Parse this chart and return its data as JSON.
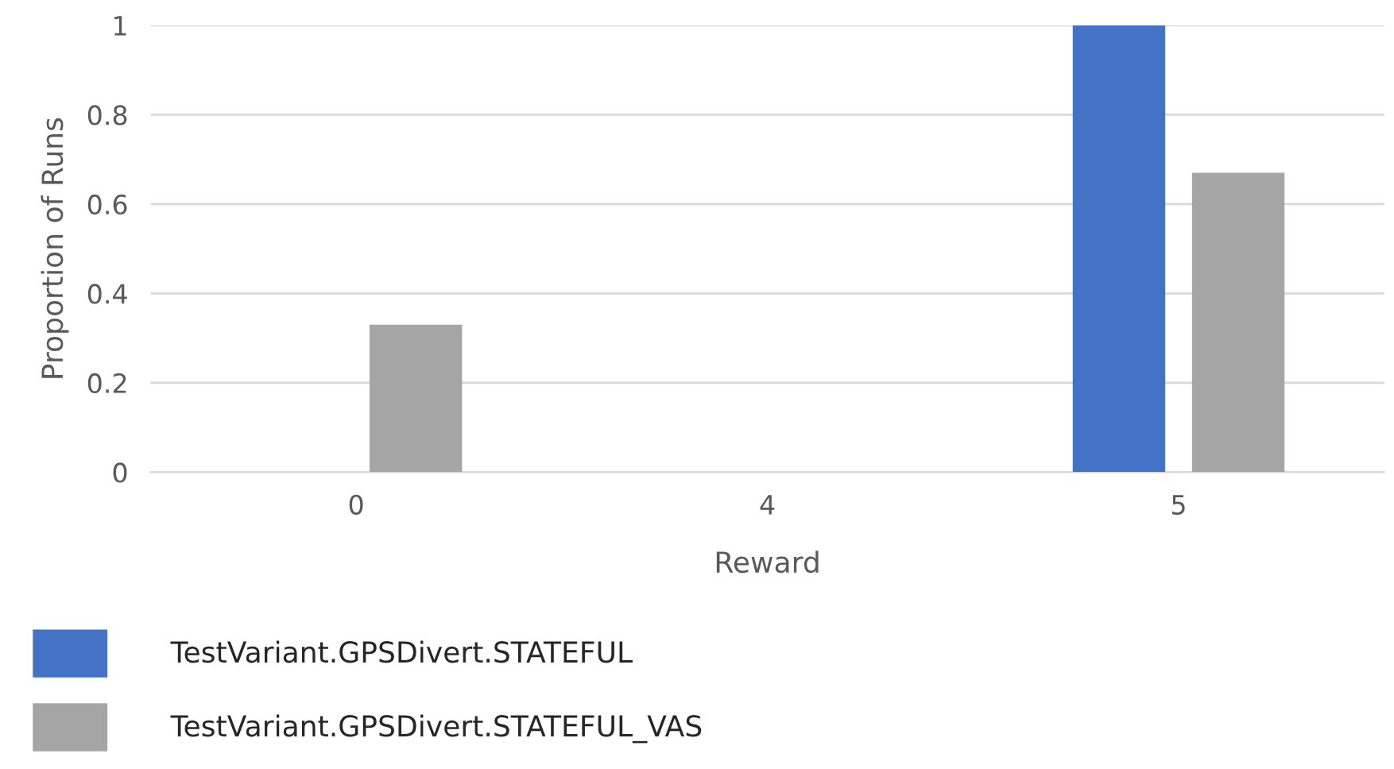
{
  "chart_data": {
    "type": "bar",
    "xlabel": "Reward",
    "ylabel": "Proportion of Runs",
    "categories": [
      "0",
      "4",
      "5"
    ],
    "series": [
      {
        "name": "TestVariant.GPSDivert.STATEFUL",
        "color": "#4472c4",
        "values": [
          0,
          0,
          1
        ]
      },
      {
        "name": "TestVariant.GPSDivert.STATEFUL_VAS",
        "color": "#a5a5a5",
        "values": [
          0.33,
          0,
          0.67
        ]
      }
    ],
    "ylim": [
      0,
      1
    ],
    "yticks": [
      0,
      0.2,
      0.4,
      0.6,
      0.8,
      1
    ],
    "grid": "y",
    "legend": "bottom left"
  }
}
